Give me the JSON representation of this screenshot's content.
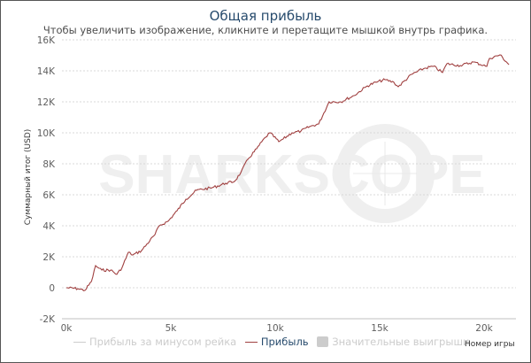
{
  "title": "Общая прибыль",
  "subtitle": "Чтобы увеличить изображение, кликните и перетащите мышкой внутрь графика.",
  "watermark": "SHARKSCOPE",
  "chart_data": {
    "type": "line",
    "title": "Общая прибыль",
    "xlabel": "Номер игры",
    "ylabel": "Суммарный итог (USD)",
    "xlim": [
      0,
      21500
    ],
    "ylim": [
      -2000,
      16000
    ],
    "x_ticks": [
      "0k",
      "5k",
      "10k",
      "15k",
      "20k"
    ],
    "x_tick_values": [
      0,
      5000,
      10000,
      15000,
      20000
    ],
    "y_ticks": [
      "-2K",
      "0",
      "2K",
      "4K",
      "6K",
      "8K",
      "10K",
      "12K",
      "14K",
      "16K"
    ],
    "y_tick_values": [
      -2000,
      0,
      2000,
      4000,
      6000,
      8000,
      10000,
      12000,
      14000,
      16000
    ],
    "grid": true,
    "legend_position": "bottom",
    "legend": [
      {
        "name": "Прибыль за минусом рейка",
        "visible": false,
        "color": "#cccccc"
      },
      {
        "name": "Прибыль",
        "visible": true,
        "color": "#a04040"
      },
      {
        "name": "Значительные выигрыши",
        "visible": false,
        "color": "#cccccc"
      }
    ],
    "series": [
      {
        "name": "Прибыль",
        "color": "#a04040",
        "x": [
          0,
          550,
          890,
          1200,
          1400,
          1500,
          1700,
          2120,
          2415,
          2670,
          2970,
          3180,
          3600,
          4240,
          4450,
          4870,
          5300,
          5720,
          6230,
          6990,
          7630,
          8050,
          8350,
          8690,
          9110,
          9530,
          9750,
          10170,
          10380,
          10800,
          11230,
          11650,
          12080,
          12580,
          13140,
          13770,
          14410,
          14830,
          15250,
          15680,
          15890,
          16530,
          17160,
          17580,
          18010,
          18220,
          18860,
          19490,
          20130,
          20260,
          20760,
          21190
        ],
        "y": [
          0,
          -60,
          -170,
          400,
          1430,
          1310,
          1140,
          1140,
          860,
          1310,
          2290,
          2110,
          2400,
          3430,
          4000,
          4290,
          4970,
          5710,
          6290,
          6460,
          6740,
          6860,
          7430,
          8290,
          8970,
          9710,
          10000,
          9430,
          9600,
          10000,
          10110,
          10400,
          10570,
          12000,
          12000,
          12400,
          13030,
          13260,
          13430,
          13260,
          12970,
          13770,
          14170,
          14290,
          13890,
          14460,
          14340,
          14570,
          14290,
          14800,
          15030,
          14400
        ]
      }
    ]
  }
}
